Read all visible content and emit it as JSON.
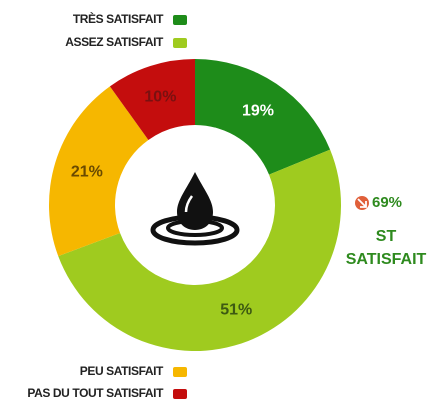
{
  "chart_data": {
    "type": "pie",
    "categories": [
      "TRÈS SATISFAIT",
      "ASSEZ SATISFAIT",
      "PEU SATISFAIT",
      "PAS DU TOUT SATISFAIT"
    ],
    "values": [
      19,
      51,
      21,
      10
    ],
    "value_labels": [
      "19%",
      "51%",
      "21%",
      "10%"
    ],
    "colors": [
      "#1e8c1a",
      "#9fcb1f",
      "#f6b700",
      "#c40d0d"
    ],
    "annotation": "69%",
    "annotation_label": [
      "ST",
      "SATISFAIT"
    ]
  }
}
